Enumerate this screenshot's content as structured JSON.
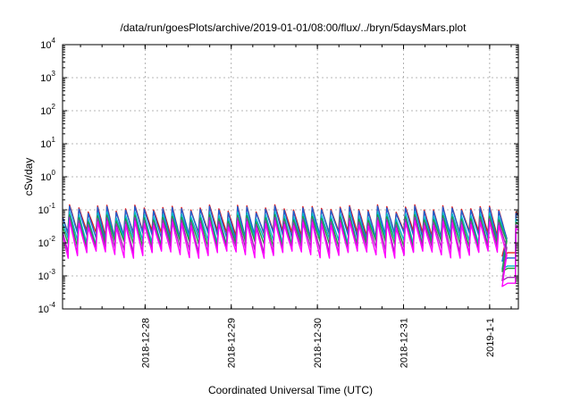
{
  "chart_data": {
    "type": "line",
    "title": "/data/run/goesPlots/archive/2019-01-01/08:00/flux/../bryn/5daysMars.plot",
    "xlabel": "Coordinated Universal Time (UTC)",
    "ylabel": "cSv/day",
    "yscale": "log",
    "ylim": [
      0.0001,
      10000
    ],
    "yticks": [
      {
        "base": "10",
        "exp": "-4",
        "value": 0.0001
      },
      {
        "base": "10",
        "exp": "-3",
        "value": 0.001
      },
      {
        "base": "10",
        "exp": "-2",
        "value": 0.01
      },
      {
        "base": "10",
        "exp": "-1",
        "value": 0.1
      },
      {
        "base": "10",
        "exp": "0",
        "value": 1
      },
      {
        "base": "10",
        "exp": "1",
        "value": 10
      },
      {
        "base": "10",
        "exp": "2",
        "value": 100
      },
      {
        "base": "10",
        "exp": "3",
        "value": 1000
      },
      {
        "base": "10",
        "exp": "4",
        "value": 10000
      }
    ],
    "xlim": [
      "2018-12-27 01:00",
      "2019-01-01 08:00"
    ],
    "xticks": [
      {
        "label": "2018-12-28",
        "value": "2018-12-28 00:00"
      },
      {
        "label": "2018-12-29",
        "value": "2018-12-29 00:00"
      },
      {
        "label": "2018-12-30",
        "value": "2018-12-30 00:00"
      },
      {
        "label": "2018-12-31",
        "value": "2018-12-31 00:00"
      },
      {
        "label": "2019-1-1",
        "value": "2019-01-01 00:00"
      }
    ],
    "grid": true,
    "legend": "none",
    "cycle_hours": 2.6,
    "series": [
      {
        "color": "#e41a1c",
        "peak": 0.12,
        "trough": 0.018,
        "end_value": 0.005
      },
      {
        "color": "#1f5fd0",
        "peak": 0.11,
        "trough": 0.016,
        "end_value": 0.0035
      },
      {
        "color": "#00b8c8",
        "peak": 0.075,
        "trough": 0.011,
        "end_value": 0.002
      },
      {
        "color": "#20a040",
        "peak": 0.06,
        "trough": 0.009,
        "end_value": 0.0017
      },
      {
        "color": "#9b30b0",
        "peak": 0.05,
        "trough": 0.006,
        "end_value": 0.0009
      },
      {
        "color": "#ff00ff",
        "peak": 0.04,
        "trough": 0.0045,
        "end_value": 0.0006
      }
    ]
  }
}
